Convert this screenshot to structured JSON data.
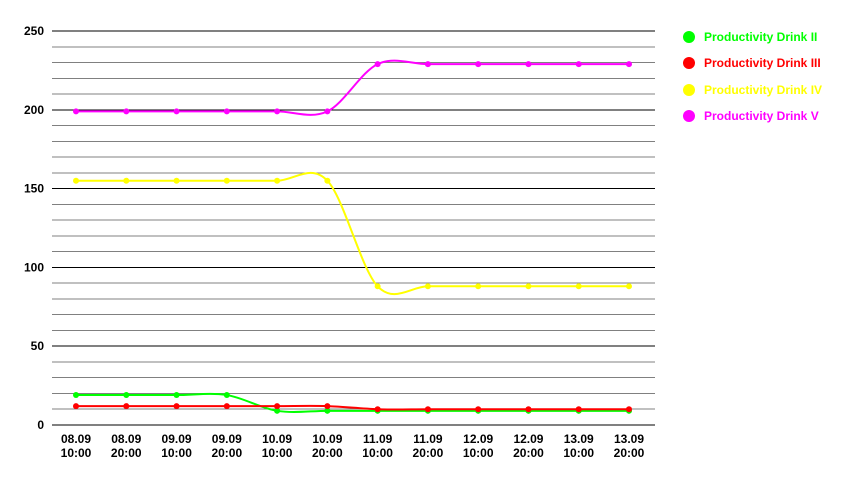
{
  "chart_data": {
    "type": "line",
    "title": "",
    "xlabel": "",
    "ylabel": "",
    "ylim": [
      0,
      250
    ],
    "y_ticks": [
      0,
      50,
      100,
      150,
      200,
      250
    ],
    "grid": "horizontal",
    "legend_position": "right",
    "categories": [
      [
        "08.09",
        "10:00"
      ],
      [
        "08.09",
        "20:00"
      ],
      [
        "09.09",
        "10:00"
      ],
      [
        "09.09",
        "20:00"
      ],
      [
        "10.09",
        "10:00"
      ],
      [
        "10.09",
        "20:00"
      ],
      [
        "11.09",
        "10:00"
      ],
      [
        "11.09",
        "20:00"
      ],
      [
        "12.09",
        "10:00"
      ],
      [
        "12.09",
        "20:00"
      ],
      [
        "13.09",
        "10:00"
      ],
      [
        "13.09",
        "20:00"
      ]
    ],
    "series": [
      {
        "name": "Productivity Drink II",
        "color": "#00ff00",
        "values": [
          19,
          19,
          19,
          19,
          9,
          9,
          9,
          9,
          9,
          9,
          9,
          9
        ]
      },
      {
        "name": "Productivity Drink III",
        "color": "#ff0000",
        "values": [
          12,
          12,
          12,
          12,
          12,
          12,
          10,
          10,
          10,
          10,
          10,
          10
        ]
      },
      {
        "name": "Productivity Drink IV",
        "color": "#ffff00",
        "values": [
          155,
          155,
          155,
          155,
          155,
          155,
          88,
          88,
          88,
          88,
          88,
          88
        ]
      },
      {
        "name": "Productivity Drink V",
        "color": "#ff00ff",
        "values": [
          199,
          199,
          199,
          199,
          199,
          199,
          229,
          229,
          229,
          229,
          229,
          229
        ]
      }
    ]
  }
}
